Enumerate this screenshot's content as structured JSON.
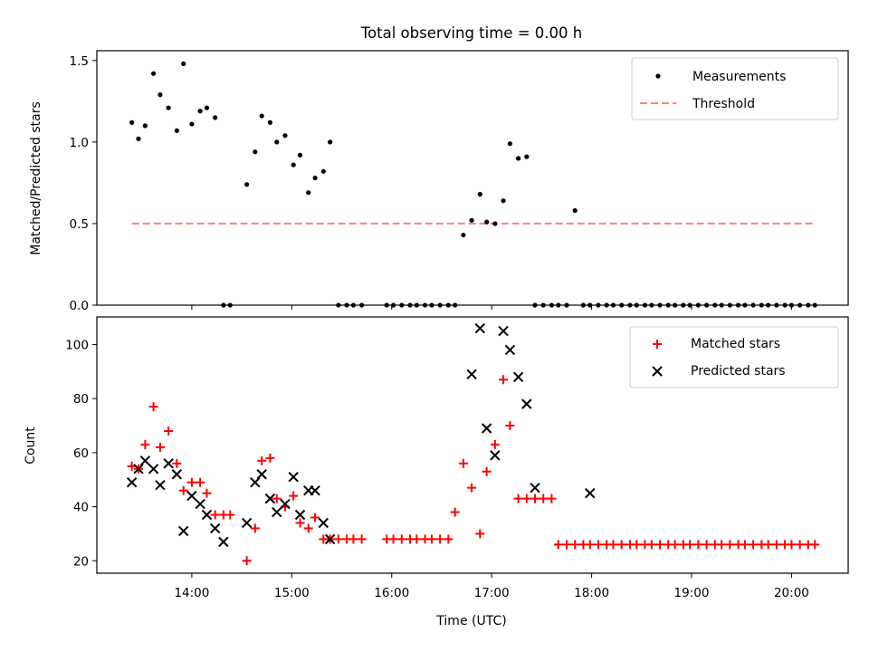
{
  "title": "Total observing time = 0.00 h",
  "xlabel": "Time (UTC)",
  "colors": {
    "measurement": "#000000",
    "threshold": "#ff8080",
    "matched": "#ff0000",
    "predicted": "#000000"
  },
  "chart_data": [
    {
      "type": "scatter",
      "name": "ratio-panel",
      "ylabel": "Matched/Predicted stars",
      "x_unit": "hours UTC",
      "xlim": [
        "13:03",
        "20:34"
      ],
      "ylim": [
        0,
        1.56
      ],
      "yticks": [
        0,
        0.5,
        1.0,
        1.5
      ],
      "ytick_labels": [
        "0.0",
        "0.5",
        "1.0",
        "1.5"
      ],
      "legend_position": "top-right",
      "legend": [
        "Measurements",
        "Threshold"
      ],
      "series": [
        {
          "name": "Measurements",
          "x": [
            "13:24",
            "13:28",
            "13:32",
            "13:37",
            "13:41",
            "13:46",
            "13:51",
            "13:55",
            "14:00",
            "14:05",
            "14:09",
            "14:14",
            "14:19",
            "14:23",
            "14:33",
            "14:38",
            "14:42",
            "14:47",
            "14:51",
            "14:56",
            "15:01",
            "15:05",
            "15:10",
            "15:14",
            "15:19",
            "15:23",
            "15:28",
            "15:33",
            "15:37",
            "15:42",
            "15:57",
            "16:01",
            "16:06",
            "16:11",
            "16:15",
            "16:20",
            "16:24",
            "16:29",
            "16:34",
            "16:38",
            "16:43",
            "16:48",
            "16:53",
            "16:57",
            "17:02",
            "17:07",
            "17:11",
            "17:16",
            "17:21",
            "17:26",
            "17:31",
            "17:36",
            "17:40",
            "17:45",
            "17:50",
            "17:55",
            "17:59",
            "18:04",
            "18:09",
            "18:13",
            "18:18",
            "18:23",
            "18:27",
            "18:32",
            "18:36",
            "18:41",
            "18:46",
            "18:50",
            "18:55",
            "18:59",
            "19:04",
            "19:09",
            "19:14",
            "19:18",
            "19:23",
            "19:28",
            "19:32",
            "19:37",
            "19:42",
            "19:46",
            "19:51",
            "19:56",
            "20:00",
            "20:05",
            "20:10",
            "20:14"
          ],
          "y": [
            1.12,
            1.02,
            1.1,
            1.42,
            1.29,
            1.21,
            1.07,
            1.48,
            1.11,
            1.19,
            1.21,
            1.15,
            0,
            0,
            0.74,
            0.94,
            1.16,
            1.12,
            1,
            1.04,
            0.86,
            0.92,
            0.69,
            0.78,
            0.82,
            1,
            0,
            0,
            0,
            0,
            0,
            0,
            0,
            0,
            0,
            0,
            0,
            0,
            0,
            0,
            0.43,
            0.52,
            0.68,
            0.51,
            0.5,
            0.64,
            0.99,
            0.9,
            0.91,
            0,
            0,
            0,
            0,
            0,
            0.58,
            0,
            0,
            0,
            0,
            0,
            0,
            0,
            0,
            0,
            0,
            0,
            0,
            0,
            0,
            0,
            0,
            0,
            0,
            0,
            0,
            0,
            0,
            0,
            0,
            0,
            0,
            0,
            0,
            0,
            0,
            0
          ]
        },
        {
          "name": "Threshold",
          "x": [
            "13:24",
            "20:14"
          ],
          "y": [
            0.5,
            0.5
          ]
        }
      ]
    },
    {
      "type": "scatter",
      "name": "count-panel",
      "ylabel": "Count",
      "xlabel": "Time (UTC)",
      "xlim": [
        "13:03",
        "20:34"
      ],
      "xticks": [
        "14:00",
        "15:00",
        "16:00",
        "17:00",
        "18:00",
        "19:00",
        "20:00"
      ],
      "ylim": [
        15.4,
        110.2
      ],
      "yticks": [
        20,
        40,
        60,
        80,
        100
      ],
      "legend_position": "top-right",
      "legend": [
        "Matched stars",
        "Predicted stars"
      ],
      "series": [
        {
          "name": "Matched stars",
          "x": [
            "13:24",
            "13:28",
            "13:32",
            "13:37",
            "13:41",
            "13:46",
            "13:51",
            "13:55",
            "14:00",
            "14:05",
            "14:09",
            "14:14",
            "14:19",
            "14:23",
            "14:33",
            "14:38",
            "14:42",
            "14:47",
            "14:51",
            "14:56",
            "15:01",
            "15:05",
            "15:10",
            "15:14",
            "15:19",
            "15:23",
            "15:28",
            "15:33",
            "15:37",
            "15:42",
            "15:57",
            "16:01",
            "16:06",
            "16:11",
            "16:15",
            "16:20",
            "16:24",
            "16:29",
            "16:34",
            "16:38",
            "16:43",
            "16:48",
            "16:53",
            "16:57",
            "17:02",
            "17:07",
            "17:11",
            "17:16",
            "17:21",
            "17:26",
            "17:31",
            "17:36",
            "17:40",
            "17:45",
            "17:50",
            "17:55",
            "17:59",
            "18:04",
            "18:09",
            "18:13",
            "18:18",
            "18:23",
            "18:27",
            "18:32",
            "18:36",
            "18:41",
            "18:46",
            "18:50",
            "18:55",
            "18:59",
            "19:04",
            "19:09",
            "19:14",
            "19:18",
            "19:23",
            "19:28",
            "19:32",
            "19:37",
            "19:42",
            "19:46",
            "19:51",
            "19:56",
            "20:00",
            "20:05",
            "20:10",
            "20:14"
          ],
          "y": [
            55,
            54,
            63,
            77,
            62,
            68,
            56,
            46,
            49,
            49,
            45,
            37,
            37,
            37,
            20,
            32,
            57,
            58,
            43,
            40,
            44,
            34,
            32,
            36,
            28,
            28,
            28,
            28,
            28,
            28,
            28,
            28,
            28,
            28,
            28,
            28,
            28,
            28,
            28,
            38,
            56,
            47,
            30,
            53,
            63,
            87,
            70,
            43,
            43,
            43,
            43,
            43,
            26,
            26,
            26,
            26,
            26,
            26,
            26,
            26,
            26,
            26,
            26,
            26,
            26,
            26,
            26,
            26,
            26,
            26,
            26,
            26,
            26,
            26,
            26,
            26,
            26,
            26,
            26,
            26,
            26,
            26,
            26,
            26,
            26,
            26
          ]
        },
        {
          "name": "Predicted stars",
          "x": [
            "13:24",
            "13:28",
            "13:32",
            "13:37",
            "13:41",
            "13:46",
            "13:51",
            "13:55",
            "14:00",
            "14:05",
            "14:09",
            "14:14",
            "14:19",
            "14:33",
            "14:38",
            "14:42",
            "14:47",
            "14:51",
            "14:56",
            "15:01",
            "15:05",
            "15:10",
            "15:14",
            "15:19",
            "15:23",
            "16:48",
            "16:53",
            "16:57",
            "17:02",
            "17:07",
            "17:11",
            "17:16",
            "17:21",
            "17:26",
            "17:59"
          ],
          "y": [
            49,
            54,
            57,
            54,
            48,
            56,
            52,
            31,
            44,
            41,
            37,
            32,
            27,
            34,
            49,
            52,
            43,
            38,
            41,
            51,
            37,
            46,
            46,
            34,
            28,
            89,
            106,
            69,
            59,
            105,
            98,
            88,
            78,
            47,
            45
          ]
        }
      ]
    }
  ]
}
